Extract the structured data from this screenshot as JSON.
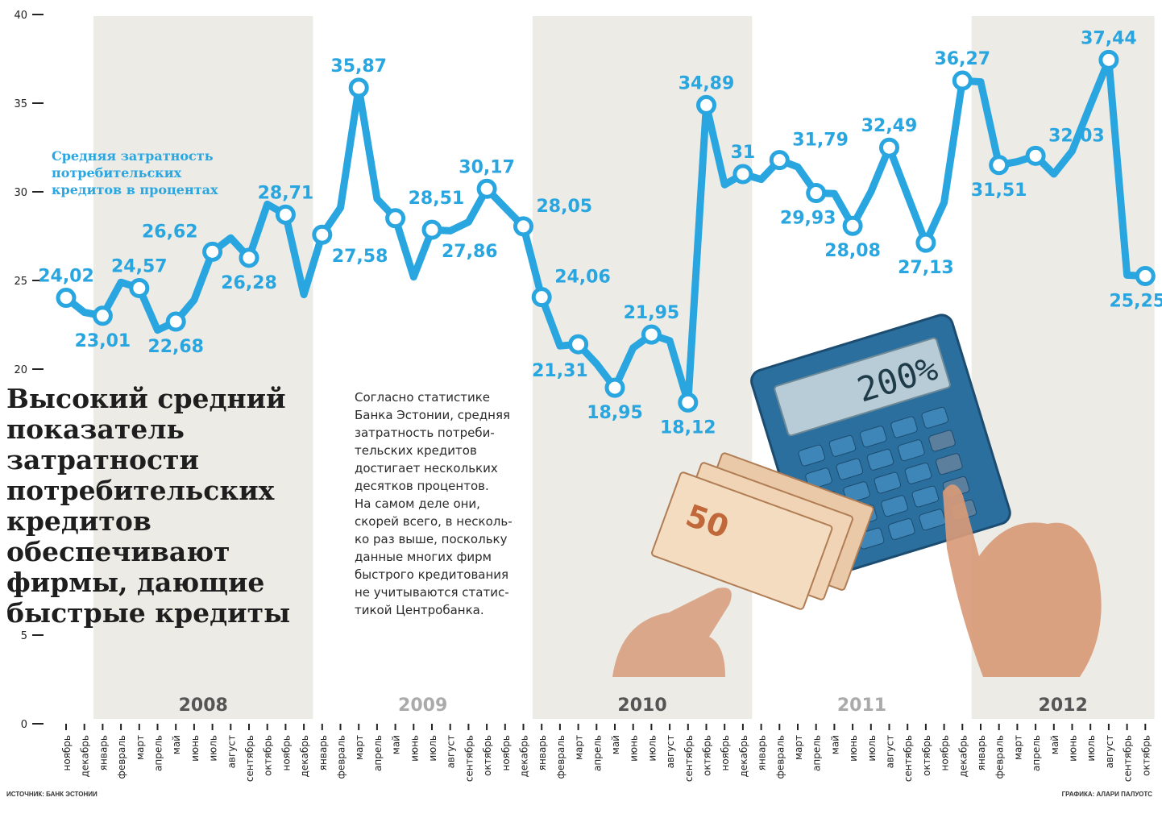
{
  "headline": "Высокий средний показатель затратности потребительских кредитов обеспечивают фирмы, дающие быстрые кредиты",
  "note": "Согласно статистике\nБанка Эстонии, средняя\nзатратность потреби-\nтельских кредитов\nдостигает нескольких\nдесятков процентов.\nНа самом деле они,\nскорей всего, в несколь-\nко раз выше, поскольку\nданные многих фирм\nбыстрого кредитования\nне учитываются статис-\nтикой Центробанка.",
  "source": "ИСТОЧНИК: БАНК ЭСТОНИИ",
  "credit": "ГРАФИКА: АЛАРИ ПАЛУОТС",
  "colors": {
    "line": "#29a5e0",
    "band": "#ecebe6",
    "text": "#1e1e1e"
  },
  "chart_data": {
    "type": "line",
    "ylim": [
      0,
      40
    ],
    "yticks": [
      0,
      5,
      20,
      25,
      30,
      35,
      40
    ],
    "x": [
      "ноябрь",
      "декабрь",
      "январь",
      "февраль",
      "март",
      "апрель",
      "май",
      "июнь",
      "июль",
      "август",
      "сентябрь",
      "октябрь",
      "ноябрь",
      "декабрь",
      "январь",
      "февраль",
      "март",
      "апрель",
      "май",
      "июнь",
      "июль",
      "август",
      "сентябрь",
      "октябрь",
      "ноябрь",
      "декабрь",
      "январь",
      "февраль",
      "март",
      "апрель",
      "май",
      "июнь",
      "июль",
      "август",
      "сентябрь",
      "октябрь",
      "ноябрь",
      "декабрь",
      "январь",
      "февраль",
      "март",
      "апрель",
      "май",
      "июнь",
      "июль",
      "август",
      "сентябрь",
      "октябрь",
      "ноябрь",
      "декабрь",
      "январь",
      "февраль",
      "март",
      "апрель",
      "май",
      "июнь",
      "июль",
      "август",
      "сентябрь",
      "октябрь"
    ],
    "years": [
      {
        "label": "2008",
        "start": 2,
        "end": 13,
        "shaded": true
      },
      {
        "label": "2009",
        "start": 14,
        "end": 25,
        "shaded": false
      },
      {
        "label": "2010",
        "start": 26,
        "end": 37,
        "shaded": true
      },
      {
        "label": "2011",
        "start": 38,
        "end": 49,
        "shaded": false
      },
      {
        "label": "2012",
        "start": 50,
        "end": 59,
        "shaded": true
      }
    ],
    "series": [
      {
        "name": "Средняя затратность\nпотребительских\nкредитов в процентах",
        "values": [
          24.02,
          23.2,
          23.01,
          24.9,
          24.57,
          22.2,
          22.68,
          23.9,
          26.62,
          27.4,
          26.28,
          29.3,
          28.71,
          24.2,
          27.58,
          29.1,
          35.87,
          29.6,
          28.51,
          25.2,
          27.86,
          27.8,
          28.3,
          30.17,
          29.1,
          28.05,
          24.06,
          21.31,
          21.4,
          20.3,
          18.95,
          21.2,
          21.95,
          21.6,
          18.12,
          34.89,
          30.4,
          31.0,
          30.7,
          31.79,
          31.4,
          29.93,
          29.9,
          28.08,
          30.0,
          32.49,
          29.8,
          27.13,
          29.4,
          36.27,
          36.2,
          31.51,
          31.7,
          32.03,
          31.0,
          32.3,
          34.9,
          37.44,
          25.3,
          25.25
        ],
        "labels": [
          {
            "i": 0,
            "text": "24,02",
            "pos": "above"
          },
          {
            "i": 2,
            "text": "23,01",
            "pos": "below"
          },
          {
            "i": 4,
            "text": "24,57",
            "pos": "above"
          },
          {
            "i": 6,
            "text": "22,68",
            "pos": "below"
          },
          {
            "i": 8,
            "text": "26,62",
            "pos": "above-left"
          },
          {
            "i": 10,
            "text": "26,28",
            "pos": "below"
          },
          {
            "i": 12,
            "text": "28,71",
            "pos": "above"
          },
          {
            "i": 14,
            "text": "27,58",
            "pos": "below-right"
          },
          {
            "i": 16,
            "text": "35,87",
            "pos": "above"
          },
          {
            "i": 18,
            "text": "28,51",
            "pos": "above-right"
          },
          {
            "i": 20,
            "text": "27,86",
            "pos": "below-right"
          },
          {
            "i": 23,
            "text": "30,17",
            "pos": "above"
          },
          {
            "i": 25,
            "text": "28,05",
            "pos": "above-right"
          },
          {
            "i": 26,
            "text": "24,06",
            "pos": "above-right"
          },
          {
            "i": 27,
            "text": "21,31",
            "pos": "below"
          },
          {
            "i": 30,
            "text": "18,95",
            "pos": "below"
          },
          {
            "i": 32,
            "text": "21,95",
            "pos": "above"
          },
          {
            "i": 34,
            "text": "18,12",
            "pos": "below"
          },
          {
            "i": 35,
            "text": "34,89",
            "pos": "above"
          },
          {
            "i": 37,
            "text": "31",
            "pos": "above"
          },
          {
            "i": 39,
            "text": "31,79",
            "pos": "above-right"
          },
          {
            "i": 41,
            "text": "29,93",
            "pos": "below-left"
          },
          {
            "i": 43,
            "text": "28,08",
            "pos": "below"
          },
          {
            "i": 45,
            "text": "32,49",
            "pos": "above"
          },
          {
            "i": 47,
            "text": "27,13",
            "pos": "below"
          },
          {
            "i": 49,
            "text": "36,27",
            "pos": "above"
          },
          {
            "i": 51,
            "text": "31,51",
            "pos": "below"
          },
          {
            "i": 53,
            "text": "32,03",
            "pos": "above-right"
          },
          {
            "i": 57,
            "text": "37,44",
            "pos": "above"
          },
          {
            "i": 59,
            "text": "25,25",
            "pos": "below-left"
          }
        ],
        "markers": [
          0,
          2,
          4,
          6,
          8,
          10,
          12,
          14,
          16,
          18,
          20,
          23,
          25,
          26,
          28,
          30,
          32,
          34,
          35,
          37,
          39,
          41,
          43,
          45,
          47,
          49,
          51,
          53,
          57,
          59
        ]
      }
    ]
  }
}
